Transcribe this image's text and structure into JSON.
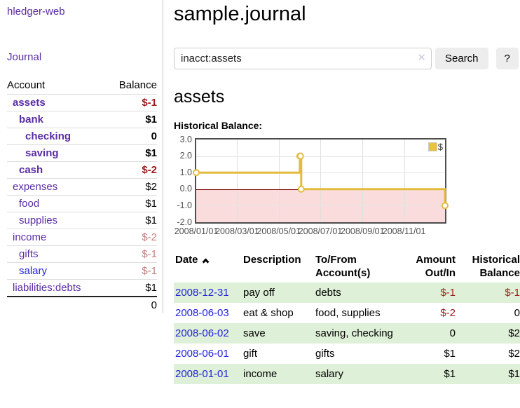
{
  "app": {
    "title": "hledger-web"
  },
  "colors": {
    "link_purple": "#5b2ca5",
    "link_blue": "#2323dc",
    "negative_strong": "#9e1b1b",
    "negative_muted": "#c27e7e",
    "row_stripe_green": "#dff0d8",
    "series_gold": "#e3bc3f",
    "zero_line": "#7c0606",
    "negative_region": "#fbdcdc"
  },
  "sidebar": {
    "nav": {
      "journal": "Journal"
    },
    "accounts": {
      "header": {
        "account": "Account",
        "balance": "Balance"
      },
      "rows": [
        {
          "name": "assets",
          "balance": "$-1",
          "level": 0,
          "bold": true,
          "balance_class": "neg"
        },
        {
          "name": "bank",
          "balance": "$1",
          "level": 1,
          "bold": true,
          "balance_class": ""
        },
        {
          "name": "checking",
          "balance": "0",
          "level": 2,
          "bold": true,
          "balance_class": ""
        },
        {
          "name": "saving",
          "balance": "$1",
          "level": 2,
          "bold": true,
          "balance_class": ""
        },
        {
          "name": "cash",
          "balance": "$-2",
          "level": 1,
          "bold": true,
          "balance_class": "neg"
        },
        {
          "name": "expenses",
          "balance": "$2",
          "level": 0,
          "bold": false,
          "balance_class": ""
        },
        {
          "name": "food",
          "balance": "$1",
          "level": 1,
          "bold": false,
          "balance_class": ""
        },
        {
          "name": "supplies",
          "balance": "$1",
          "level": 1,
          "bold": false,
          "balance_class": ""
        },
        {
          "name": "income",
          "balance": "$-2",
          "level": 0,
          "bold": false,
          "balance_class": "neg-muted"
        },
        {
          "name": "gifts",
          "balance": "$-1",
          "level": 1,
          "bold": false,
          "balance_class": "neg-muted"
        },
        {
          "name": "salary",
          "balance": "$-1",
          "level": 1,
          "bold": false,
          "balance_class": "neg-muted",
          "link_class": "blue"
        },
        {
          "name": "liabilities:debts",
          "balance": "$1",
          "level": 0,
          "bold": false,
          "balance_class": ""
        }
      ],
      "total": "0"
    }
  },
  "main": {
    "title": "sample.journal",
    "search": {
      "value": "inacct:assets",
      "clear_icon": "✕",
      "search_button": "Search",
      "help_button": "?"
    },
    "heading": "assets",
    "register": {
      "headers": {
        "date": "Date",
        "description": "Description",
        "accounts": "To/From Account(s)",
        "amount": "Amount Out/In",
        "balance": "Historical Balance"
      },
      "rows": [
        {
          "date": "2008-12-31",
          "description": "pay off",
          "accounts": "debts",
          "amount": "$-1",
          "balance": "$-1"
        },
        {
          "date": "2008-06-03",
          "description": "eat & shop",
          "accounts": "food, supplies",
          "amount": "$-2",
          "balance": "0"
        },
        {
          "date": "2008-06-02",
          "description": "save",
          "accounts": "saving, checking",
          "amount": "0",
          "balance": "$2"
        },
        {
          "date": "2008-06-01",
          "description": "gift",
          "accounts": "gifts",
          "amount": "$1",
          "balance": "$2"
        },
        {
          "date": "2008-01-01",
          "description": "income",
          "accounts": "salary",
          "amount": "$1",
          "balance": "$1"
        }
      ]
    }
  },
  "chart_data": {
    "type": "line",
    "title": "Historical Balance:",
    "step": true,
    "markers": "open-circle",
    "series": [
      {
        "name": "$",
        "color": "#e3bc3f",
        "points": [
          [
            "2008-01-01",
            1
          ],
          [
            "2008-06-01",
            2
          ],
          [
            "2008-06-02",
            2
          ],
          [
            "2008-06-03",
            0
          ],
          [
            "2008-12-31",
            -1
          ]
        ]
      }
    ],
    "xlim": [
      "2008-01-01",
      "2008-12-31"
    ],
    "ylim": [
      -2,
      3
    ],
    "x_ticks": [
      "2008/01/01",
      "2008/03/01",
      "2008/05/01",
      "2008/07/01",
      "2008/09/01",
      "2008/11/01"
    ],
    "y_ticks": [
      "3.0",
      "2.0",
      "1.0",
      "0.0",
      "-1.0",
      "-2.0"
    ],
    "grid": true,
    "legend_position": "top-right",
    "negative_region_color": "#fbdcdc",
    "zero_line_color": "#7c0606"
  }
}
